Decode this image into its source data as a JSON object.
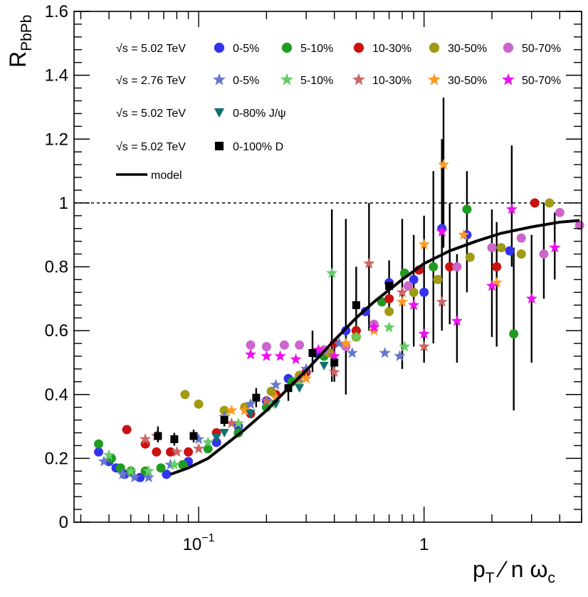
{
  "chart_data": {
    "type": "scatter",
    "ylabel_main": "R",
    "ylabel_sub": "PbPb",
    "xlabel_main": "p",
    "xlabel_sub": "T",
    "xlabel_rest": " ⁄  n ω",
    "xlabel_sub2": "c",
    "x_scale": "log",
    "xlim": [
      0.028,
      5.0
    ],
    "ylim": [
      0,
      1.6
    ],
    "y_ticks": [
      {
        "v": 0,
        "label": "0"
      },
      {
        "v": 0.2,
        "label": "0.2"
      },
      {
        "v": 0.4,
        "label": "0.4"
      },
      {
        "v": 0.6,
        "label": "0.6"
      },
      {
        "v": 0.8,
        "label": "0.8"
      },
      {
        "v": 1.0,
        "label": "1"
      },
      {
        "v": 1.2,
        "label": "1.2"
      },
      {
        "v": 1.4,
        "label": "1.4"
      },
      {
        "v": 1.6,
        "label": "1.6"
      }
    ],
    "x_ticks": [
      {
        "v": 0.1,
        "base": "10",
        "exp": "−1"
      },
      {
        "v": 1,
        "base": "1",
        "exp": ""
      }
    ],
    "reference_line": {
      "y": 1.0,
      "style": "dashed"
    },
    "legend": [
      {
        "row": 0,
        "prefix": "√s = 5.02 TeV",
        "entries": [
          {
            "label": "0-5%",
            "marker": "circle",
            "color": "#3333ee"
          },
          {
            "label": "5-10%",
            "marker": "circle",
            "color": "#1f9c1f"
          },
          {
            "label": "10-30%",
            "marker": "circle",
            "color": "#cc1111"
          },
          {
            "label": "30-50%",
            "marker": "circle",
            "color": "#a09a14"
          },
          {
            "label": "50-70%",
            "marker": "circle",
            "color": "#cc66cc"
          }
        ]
      },
      {
        "row": 1,
        "prefix": "√s = 2.76 TeV",
        "entries": [
          {
            "label": "0-5%",
            "marker": "star",
            "color": "#6677cc"
          },
          {
            "label": "5-10%",
            "marker": "star",
            "color": "#66cc66"
          },
          {
            "label": "10-30%",
            "marker": "star",
            "color": "#cc6666"
          },
          {
            "label": "30-50%",
            "marker": "star",
            "color": "#ff9922"
          },
          {
            "label": "50-70%",
            "marker": "star",
            "color": "#ee11ee"
          }
        ]
      },
      {
        "row": 2,
        "prefix": "√s = 5.02 TeV",
        "entries": [
          {
            "label": "0-80% J/ψ",
            "marker": "triangle-down",
            "color": "#117070"
          }
        ]
      },
      {
        "row": 3,
        "prefix": "√s = 5.02 TeV",
        "entries": [
          {
            "label": "0-100% D",
            "marker": "square",
            "color": "#000000"
          }
        ]
      },
      {
        "row": 4,
        "prefix": "",
        "entries": [
          {
            "label": "model",
            "marker": "line",
            "color": "#000000"
          }
        ]
      }
    ],
    "series": [
      {
        "name": "5.02 TeV 0-5%",
        "marker": "circle",
        "color": "#3333ee",
        "points": [
          [
            0.036,
            0.22
          ],
          [
            0.04,
            0.19
          ],
          [
            0.043,
            0.17
          ],
          [
            0.047,
            0.15
          ],
          [
            0.055,
            0.14
          ],
          [
            0.072,
            0.15
          ],
          [
            0.09,
            0.19
          ],
          [
            0.12,
            0.25
          ],
          [
            0.15,
            0.3
          ],
          [
            0.2,
            0.38
          ],
          [
            0.25,
            0.45
          ],
          [
            0.33,
            0.53
          ],
          [
            0.45,
            0.6
          ],
          [
            0.55,
            0.66
          ],
          [
            0.7,
            0.75
          ],
          [
            0.9,
            0.76
          ],
          [
            1.0,
            0.72
          ],
          [
            1.2,
            0.92
          ],
          [
            1.55,
            0.9
          ],
          [
            2.4,
            0.85
          ]
        ]
      },
      {
        "name": "5.02 TeV 5-10%",
        "marker": "circle",
        "color": "#1f9c1f",
        "points": [
          [
            0.036,
            0.245
          ],
          [
            0.041,
            0.2
          ],
          [
            0.045,
            0.17
          ],
          [
            0.05,
            0.16
          ],
          [
            0.058,
            0.16
          ],
          [
            0.068,
            0.17
          ],
          [
            0.085,
            0.18
          ],
          [
            0.11,
            0.23
          ],
          [
            0.15,
            0.28
          ],
          [
            0.2,
            0.36
          ],
          [
            0.26,
            0.44
          ],
          [
            0.36,
            0.52
          ],
          [
            0.5,
            0.6
          ],
          [
            0.65,
            0.69
          ],
          [
            0.82,
            0.78
          ],
          [
            1.1,
            0.8
          ],
          [
            1.55,
            0.98
          ],
          [
            2.5,
            0.59
          ]
        ]
      },
      {
        "name": "5.02 TeV 10-30%",
        "marker": "circle",
        "color": "#cc1111",
        "points": [
          [
            0.048,
            0.29
          ],
          [
            0.058,
            0.245
          ],
          [
            0.065,
            0.22
          ],
          [
            0.075,
            0.22
          ],
          [
            0.09,
            0.22
          ],
          [
            0.12,
            0.28
          ],
          [
            0.17,
            0.34
          ],
          [
            0.22,
            0.4
          ],
          [
            0.3,
            0.47
          ],
          [
            0.4,
            0.56
          ],
          [
            0.5,
            0.6
          ],
          [
            0.7,
            0.7
          ],
          [
            0.95,
            0.79
          ],
          [
            1.3,
            0.8
          ],
          [
            2.1,
            0.8
          ],
          [
            3.1,
            1.0
          ]
        ]
      },
      {
        "name": "5.02 TeV 30-50%",
        "marker": "circle",
        "color": "#a09a14",
        "points": [
          [
            0.087,
            0.4
          ],
          [
            0.1,
            0.37
          ],
          [
            0.13,
            0.35
          ],
          [
            0.16,
            0.36
          ],
          [
            0.21,
            0.41
          ],
          [
            0.28,
            0.46
          ],
          [
            0.38,
            0.53
          ],
          [
            0.5,
            0.58
          ],
          [
            0.7,
            0.66
          ],
          [
            0.9,
            0.72
          ],
          [
            1.15,
            0.76
          ],
          [
            1.6,
            0.83
          ],
          [
            2.2,
            0.86
          ],
          [
            2.7,
            0.84
          ],
          [
            3.6,
            1.0
          ]
        ]
      },
      {
        "name": "5.02 TeV 50-70%",
        "marker": "circle",
        "color": "#cc66cc",
        "points": [
          [
            0.17,
            0.555
          ],
          [
            0.2,
            0.55
          ],
          [
            0.24,
            0.555
          ],
          [
            0.28,
            0.555
          ],
          [
            0.36,
            0.54
          ],
          [
            0.45,
            0.55
          ],
          [
            0.6,
            0.62
          ],
          [
            0.85,
            0.74
          ],
          [
            1.4,
            0.8
          ],
          [
            2.0,
            0.86
          ],
          [
            2.7,
            0.89
          ],
          [
            3.4,
            0.84
          ],
          [
            4.0,
            0.97
          ],
          [
            4.9,
            0.93
          ]
        ]
      },
      {
        "name": "2.76 TeV 0-5%",
        "marker": "star",
        "color": "#6677cc",
        "points": [
          [
            0.038,
            0.19
          ],
          [
            0.046,
            0.15
          ],
          [
            0.052,
            0.14
          ],
          [
            0.06,
            0.14
          ],
          [
            0.075,
            0.18
          ],
          [
            0.1,
            0.26
          ],
          [
            0.13,
            0.33
          ],
          [
            0.17,
            0.37
          ],
          [
            0.22,
            0.43
          ],
          [
            0.3,
            0.48
          ],
          [
            0.42,
            0.56
          ],
          [
            0.48,
            0.53
          ],
          [
            0.67,
            0.53
          ],
          [
            0.78,
            0.52
          ]
        ]
      },
      {
        "name": "2.76 TeV 5-10%",
        "marker": "star",
        "color": "#66cc66",
        "points": [
          [
            0.04,
            0.21
          ],
          [
            0.05,
            0.16
          ],
          [
            0.06,
            0.16
          ],
          [
            0.078,
            0.18
          ],
          [
            0.11,
            0.25
          ],
          [
            0.15,
            0.31
          ],
          [
            0.21,
            0.37
          ],
          [
            0.28,
            0.44
          ],
          [
            0.39,
            0.78
          ],
          [
            0.5,
            0.58
          ],
          [
            0.7,
            0.61
          ],
          [
            0.82,
            0.55
          ]
        ]
      },
      {
        "name": "2.76 TeV 10-30%",
        "marker": "star",
        "color": "#cc6666",
        "points": [
          [
            0.058,
            0.26
          ],
          [
            0.065,
            0.27
          ],
          [
            0.08,
            0.22
          ],
          [
            0.1,
            0.23
          ],
          [
            0.14,
            0.31
          ],
          [
            0.2,
            0.38
          ],
          [
            0.28,
            0.45
          ],
          [
            0.4,
            0.47
          ],
          [
            0.57,
            0.81
          ],
          [
            0.8,
            0.72
          ],
          [
            1.0,
            0.55
          ],
          [
            1.2,
            0.69
          ]
        ]
      },
      {
        "name": "2.76 TeV 30-50%",
        "marker": "star",
        "color": "#ff9922",
        "points": [
          [
            0.14,
            0.35
          ],
          [
            0.16,
            0.35
          ],
          [
            0.22,
            0.39
          ],
          [
            0.3,
            0.45
          ],
          [
            0.45,
            0.56
          ],
          [
            0.6,
            0.6
          ],
          [
            0.8,
            0.69
          ],
          [
            1.0,
            0.87
          ],
          [
            1.22,
            1.12
          ],
          [
            1.5,
            0.9
          ],
          [
            2.1,
            0.75
          ]
        ]
      },
      {
        "name": "2.76 TeV 50-70%",
        "marker": "star",
        "color": "#ee11ee",
        "points": [
          [
            0.17,
            0.525
          ],
          [
            0.2,
            0.52
          ],
          [
            0.23,
            0.52
          ],
          [
            0.27,
            0.51
          ],
          [
            0.34,
            0.54
          ],
          [
            0.4,
            0.52
          ],
          [
            0.6,
            0.61
          ],
          [
            0.9,
            0.68
          ],
          [
            1.0,
            0.59
          ],
          [
            1.2,
            0.91
          ],
          [
            1.4,
            0.63
          ],
          [
            2.0,
            0.74
          ],
          [
            2.45,
            0.98
          ],
          [
            3.0,
            0.7
          ],
          [
            3.8,
            0.86
          ]
        ]
      },
      {
        "name": "5.02 TeV 0-80% J/ψ",
        "marker": "triangle-down",
        "color": "#117070",
        "points": [
          [
            0.12,
            0.265
          ],
          [
            0.13,
            0.28
          ],
          [
            0.17,
            0.34
          ],
          [
            0.22,
            0.37
          ],
          [
            0.28,
            0.42
          ],
          [
            0.36,
            0.49
          ]
        ]
      },
      {
        "name": "5.02 TeV 0-100% D",
        "marker": "square",
        "color": "#000000",
        "points": [
          [
            0.066,
            0.27
          ],
          [
            0.078,
            0.26
          ],
          [
            0.095,
            0.27
          ],
          [
            0.13,
            0.32
          ],
          [
            0.18,
            0.39
          ],
          [
            0.25,
            0.42
          ],
          [
            0.32,
            0.53
          ],
          [
            0.4,
            0.5
          ],
          [
            0.5,
            0.68
          ],
          [
            0.7,
            0.74
          ]
        ]
      }
    ],
    "error_bars": [
      [
        0.066,
        0.25,
        0.3
      ],
      [
        0.078,
        0.24,
        0.28
      ],
      [
        0.095,
        0.25,
        0.29
      ],
      [
        0.13,
        0.3,
        0.35
      ],
      [
        0.18,
        0.36,
        0.42
      ],
      [
        0.25,
        0.38,
        0.46
      ],
      [
        0.32,
        0.47,
        0.6
      ],
      [
        0.4,
        0.44,
        0.56
      ],
      [
        0.5,
        0.58,
        0.8
      ],
      [
        0.7,
        0.66,
        0.82
      ],
      [
        0.39,
        0.44,
        0.98
      ],
      [
        0.45,
        0.4,
        0.95
      ],
      [
        0.57,
        0.6,
        1.0
      ],
      [
        0.8,
        0.48,
        0.95
      ],
      [
        0.9,
        0.55,
        0.9
      ],
      [
        1.0,
        0.5,
        0.96
      ],
      [
        1.1,
        0.56,
        1.1
      ],
      [
        1.2,
        0.6,
        1.2
      ],
      [
        1.22,
        0.86,
        1.33
      ],
      [
        1.3,
        0.62,
        1.0
      ],
      [
        1.4,
        0.5,
        0.84
      ],
      [
        1.55,
        0.72,
        1.1
      ],
      [
        2.0,
        0.58,
        0.98
      ],
      [
        2.1,
        0.55,
        0.94
      ],
      [
        2.45,
        0.8,
        1.18
      ],
      [
        2.5,
        0.35,
        0.86
      ],
      [
        3.0,
        0.5,
        0.9
      ],
      [
        3.4,
        0.7,
        1.0
      ],
      [
        3.8,
        0.76,
        0.97
      ]
    ],
    "model_curve": [
      [
        0.075,
        0.15
      ],
      [
        0.09,
        0.17
      ],
      [
        0.11,
        0.2
      ],
      [
        0.13,
        0.24
      ],
      [
        0.16,
        0.29
      ],
      [
        0.2,
        0.35
      ],
      [
        0.25,
        0.42
      ],
      [
        0.3,
        0.475
      ],
      [
        0.4,
        0.57
      ],
      [
        0.5,
        0.64
      ],
      [
        0.6,
        0.69
      ],
      [
        0.8,
        0.76
      ],
      [
        1.0,
        0.81
      ],
      [
        1.3,
        0.85
      ],
      [
        1.7,
        0.88
      ],
      [
        2.2,
        0.905
      ],
      [
        3.0,
        0.925
      ],
      [
        4.0,
        0.94
      ],
      [
        4.9,
        0.945
      ]
    ]
  }
}
